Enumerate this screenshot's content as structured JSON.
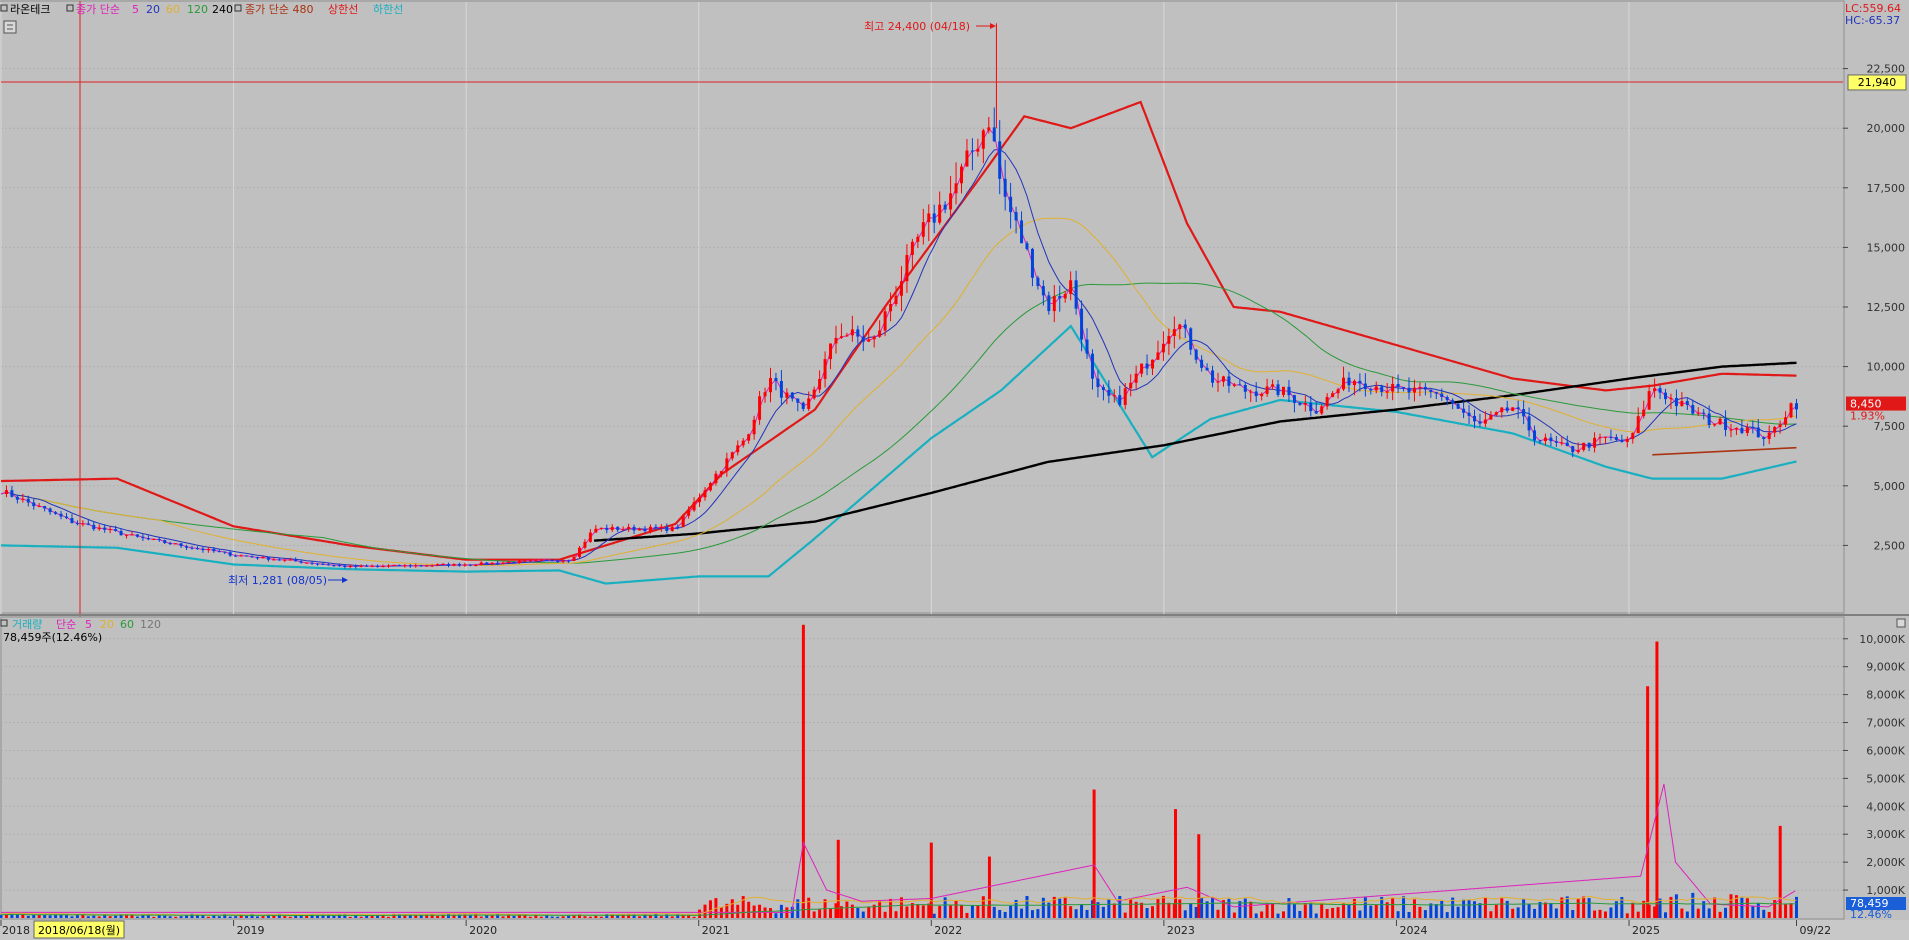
{
  "header": {
    "stock_name": "라온테크",
    "price_ma": {
      "label": "종가 단순",
      "periods": [
        "5",
        "20",
        "60",
        "120",
        "240"
      ]
    },
    "long_ma_label": "종가 단순 480",
    "upper_label": "상한선",
    "lower_label": "하한선",
    "lc_label": "LC:559.64",
    "hc_label": "HC:-65.37"
  },
  "volume_legend": {
    "label": "거래량",
    "ma_label": "단순",
    "periods": [
      "5",
      "20",
      "60",
      "120"
    ],
    "current": "78,459주(12.46%)"
  },
  "annotations": {
    "high": "최고 24,400 (04/18)",
    "low": "최저 1,281 (08/05)"
  },
  "cursor": {
    "date_label": "2018/06/18(월)",
    "price_label": "21,940",
    "price": 21940
  },
  "last": {
    "price_label": "8,450",
    "change_label": "1.93%",
    "price": 8450,
    "volume_label": "78,459",
    "volume_pct_label": "12.46%"
  },
  "colors": {
    "up": "#ff0000",
    "down": "#0044dd",
    "ma5": "#dd22bb",
    "ma20": "#2233bb",
    "ma60": "#e0b030",
    "ma120": "#2a9a3a",
    "ma240": "#000000",
    "upper": "#e01818",
    "lower": "#18b0c0",
    "ma480": "#aa3311"
  },
  "chart_data": [
    {
      "type": "line",
      "panel": "price",
      "y_ticks": [
        2500,
        5000,
        7500,
        10000,
        12500,
        15000,
        17500,
        20000,
        22500
      ],
      "y_tick_labels": [
        "2,500",
        "5,000",
        "7,500",
        "10,000",
        "12,500",
        "15,000",
        "17,500",
        "20,000",
        "22,500"
      ],
      "ylim": [
        0,
        25000
      ],
      "x_labels": [
        "2018",
        "2019",
        "2020",
        "2021",
        "2022",
        "2023",
        "2024",
        "2025",
        "09/22"
      ],
      "x_label_pos": [
        2018.0,
        2019.0,
        2020.0,
        2021.0,
        2022.0,
        2023.0,
        2024.0,
        2025.0,
        2025.72
      ],
      "xlim": [
        2018.0,
        2025.92
      ],
      "close_approx": {
        "x": [
          2018.0,
          2018.3,
          2018.6,
          2019.0,
          2019.5,
          2020.0,
          2020.2,
          2020.45,
          2020.55,
          2020.9,
          2021.05,
          2021.2,
          2021.3,
          2021.45,
          2021.6,
          2021.75,
          2021.95,
          2022.1,
          2022.25,
          2022.3,
          2022.4,
          2022.5,
          2022.6,
          2022.7,
          2022.8,
          2022.95,
          2023.05,
          2023.2,
          2023.35,
          2023.5,
          2023.65,
          2023.8,
          2024.0,
          2024.2,
          2024.35,
          2024.5,
          2024.6,
          2024.75,
          2024.9,
          2025.0,
          2025.1,
          2025.2,
          2025.35,
          2025.5,
          2025.6,
          2025.7
        ],
        "values": [
          4800,
          3500,
          2800,
          2100,
          1600,
          1700,
          1800,
          1900,
          3200,
          3200,
          5200,
          7000,
          9500,
          8000,
          11500,
          11000,
          15500,
          17500,
          20500,
          17500,
          15000,
          12500,
          13500,
          9000,
          8500,
          10500,
          12000,
          9500,
          9000,
          9000,
          8200,
          9500,
          9000,
          8800,
          7500,
          8300,
          7000,
          6500,
          7000,
          6800,
          9200,
          8500,
          7700,
          7400,
          7000,
          8450
        ]
      },
      "ma240_approx": {
        "x": [
          2020.55,
          2021.0,
          2021.5,
          2022.0,
          2022.5,
          2023.0,
          2023.5,
          2024.0,
          2024.5,
          2025.0,
          2025.4,
          2025.8
        ],
        "values": [
          2700,
          3000,
          3500,
          4700,
          6000,
          6700,
          7700,
          8200,
          8800,
          9500,
          10000,
          10200
        ]
      },
      "upper_band_approx": {
        "x": [
          2018.0,
          2018.5,
          2019.0,
          2019.5,
          2020.0,
          2020.4,
          2020.9,
          2021.1,
          2021.5,
          2021.8,
          2022.2,
          2022.4,
          2022.6,
          2022.9,
          2023.1,
          2023.3,
          2023.5,
          2024.0,
          2024.5,
          2024.9,
          2025.1,
          2025.4,
          2025.8
        ],
        "values": [
          5200,
          5300,
          3300,
          2500,
          1900,
          1900,
          3400,
          5500,
          8200,
          12500,
          17800,
          20500,
          20000,
          21100,
          16000,
          12500,
          12300,
          10900,
          9500,
          9000,
          9200,
          9700,
          9600
        ]
      },
      "lower_band_approx": {
        "x": [
          2018.0,
          2018.5,
          2019.0,
          2019.5,
          2020.0,
          2020.4,
          2020.6,
          2021.0,
          2021.3,
          2021.5,
          2022.0,
          2022.3,
          2022.6,
          2022.95,
          2023.2,
          2023.5,
          2024.0,
          2024.5,
          2024.9,
          2025.1,
          2025.4,
          2025.8
        ],
        "values": [
          2500,
          2400,
          1700,
          1500,
          1400,
          1450,
          900,
          1200,
          1200,
          2800,
          7000,
          9000,
          11700,
          6200,
          7800,
          8600,
          8100,
          7200,
          5800,
          5300,
          5300,
          6200
        ]
      }
    },
    {
      "type": "bar",
      "panel": "volume",
      "y_ticks": [
        1000,
        2000,
        3000,
        4000,
        5000,
        6000,
        7000,
        8000,
        9000,
        10000
      ],
      "y_tick_labels": [
        "1,000K",
        "2,000K",
        "3,000K",
        "4,000K",
        "5,000K",
        "6,000K",
        "7,000K",
        "8,000K",
        "9,000K",
        "10,000K"
      ],
      "unit": "K",
      "ylim": [
        0,
        10600
      ],
      "spikes_approx": {
        "x": [
          2021.45,
          2021.6,
          2022.0,
          2022.25,
          2022.7,
          2023.05,
          2023.15,
          2025.08,
          2025.12,
          2025.65
        ],
        "values": [
          10500,
          2800,
          2700,
          2200,
          4600,
          3900,
          3000,
          8300,
          9900,
          3300
        ]
      },
      "ma5_approx": {
        "x": [
          2021.4,
          2021.45,
          2021.55,
          2021.7,
          2022.0,
          2022.7,
          2022.8,
          2023.1,
          2023.3,
          2025.05,
          2025.15,
          2025.2,
          2025.35,
          2025.6,
          2025.72
        ],
        "values": [
          200,
          2700,
          1000,
          600,
          700,
          1900,
          600,
          1100,
          400,
          1500,
          4800,
          2000,
          500,
          400,
          1000
        ]
      }
    }
  ]
}
